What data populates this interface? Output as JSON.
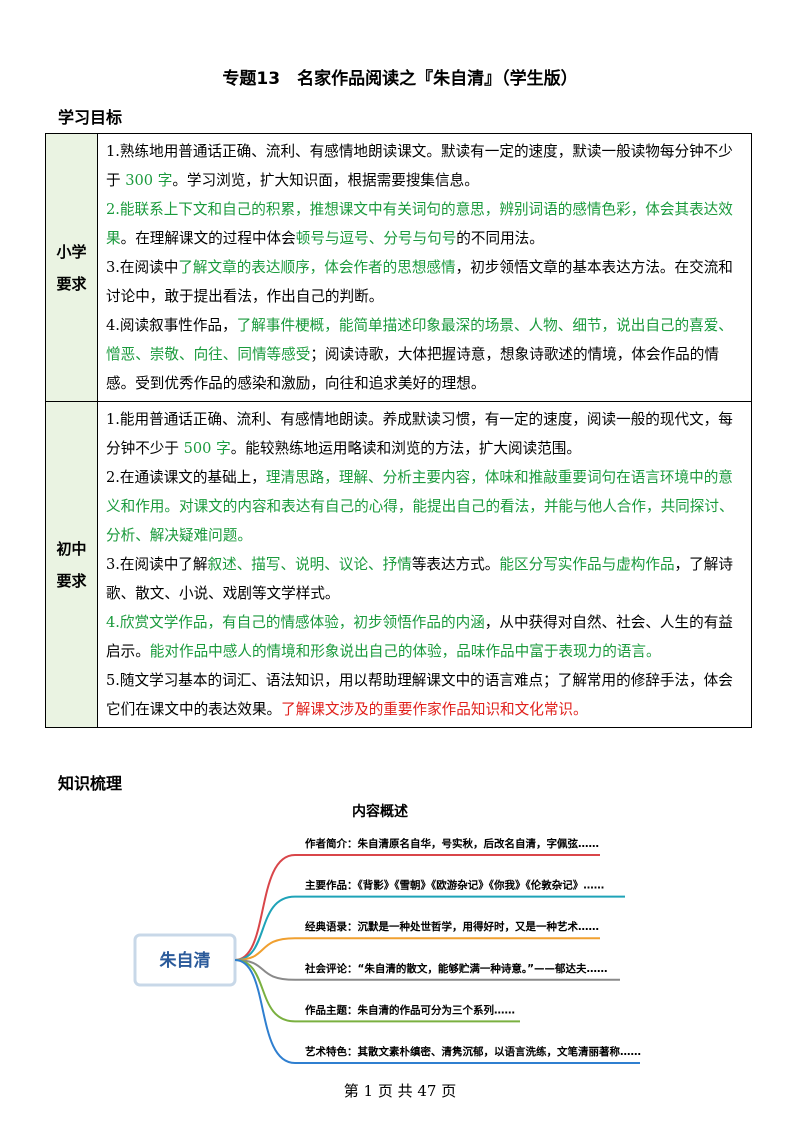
{
  "header": {
    "title": "专题13　名家作品阅读之『朱自清』（学生版）"
  },
  "objectives": {
    "heading": "学习目标",
    "rows": [
      {
        "label": [
          "小学",
          "要求"
        ],
        "paragraphs": [
          [
            {
              "text": "1.熟练地用普通话正确、流利、有感情地朗读课文。默读有一定的速度，默读一般读物每分钟不少于 "
            },
            {
              "text": "300 字",
              "color": "#1a9a3c"
            },
            {
              "text": "。学习浏览，扩大知识面，根据需要搜集信息。"
            }
          ],
          [
            {
              "text": "2.能联系上下文和自己的积累，推想课文中有关词句的意思，辨别词语的感情色彩，体会其表达效果",
              "color": "#1a9a3c"
            },
            {
              "text": "。在理解课文的过程中体会"
            },
            {
              "text": "顿号与逗号、分号与句号",
              "color": "#1a9a3c"
            },
            {
              "text": "的不同用法。"
            }
          ],
          [
            {
              "text": "3.在阅读中"
            },
            {
              "text": "了解文章的表达顺序，体会作者的思想感情",
              "color": "#1a9a3c"
            },
            {
              "text": "，初步领悟文章的基本表达方法。在交流和讨论中，敢于提出看法，作出自己的判断。"
            }
          ],
          [
            {
              "text": "4.阅读叙事性作品，"
            },
            {
              "text": "了解事件梗概，能简单描述印象最深的场景、人物、细节，说出自己的喜爱、憎恶、崇敬、向往、同情等感受",
              "color": "#1a9a3c"
            },
            {
              "text": "；阅读诗歌，大体把握诗意，想象诗歌述的情境，体会作品的情感。受到优秀作品的感染和激励，向往和追求美好的理想。"
            }
          ]
        ]
      },
      {
        "label": [
          "初中",
          "要求"
        ],
        "paragraphs": [
          [
            {
              "text": "1.能用普通话正确、流利、有感情地朗读。养成默读习惯，有一定的速度，阅读一般的现代文，每分钟不少于 "
            },
            {
              "text": "500 字",
              "color": "#1a9a3c"
            },
            {
              "text": "。能较熟练地运用略读和浏览的方法，扩大阅读范围。"
            }
          ],
          [
            {
              "text": "2.在通读课文的基础上，"
            },
            {
              "text": "理清思路，理解、分析主要内容，体味和推敲重要词句在语言环境中的意义和作用。对课文的内容和表达有自己的心得，能提出自己的看法，并能与他人合作，共同探讨、分析、解决疑难问题。",
              "color": "#1a9a3c"
            }
          ],
          [
            {
              "text": "3.在阅读中了解"
            },
            {
              "text": "叙述、描写、说明、议论、抒情",
              "color": "#1a9a3c"
            },
            {
              "text": "等表达方式。"
            },
            {
              "text": "能区分写实作品与虚构作品",
              "color": "#1a9a3c"
            },
            {
              "text": "，了解诗歌、散文、小说、戏剧等文学样式。"
            }
          ],
          [
            {
              "text": "4.欣赏文学作品，有自己的情感体验，初步领悟作品的内涵",
              "color": "#1a9a3c"
            },
            {
              "text": "，从中获得对自然、社会、人生的有益启示。"
            },
            {
              "text": "能对作品中感人的情境和形象说出自己的体验，品味作品中富于表现力的语言。",
              "color": "#1a9a3c"
            }
          ],
          [
            {
              "text": "5.随文学习基本的词汇、语法知识，用以帮助理解课文中的语言难点；了解常用的修辞手法，体会它们在课文中的表达效果。"
            },
            {
              "text": "了解课文涉及的重要作家作品知识和文化常识。",
              "color": "#e0201c"
            }
          ]
        ]
      }
    ]
  },
  "knowledge": {
    "heading": "知识梳理",
    "mindmap": {
      "title": "内容概述",
      "center": "朱自清",
      "branches": [
        {
          "label": "作者简介：",
          "text": "朱自清原名自华，号实秋，后改名自清，字佩弦……",
          "color": "#d9464a"
        },
        {
          "label": "主要作品：",
          "text": "《背影》《雪朝》《欧游杂记》《你我》《伦敦杂记》……",
          "color": "#1fa3b8"
        },
        {
          "label": "经典语录：",
          "text": "沉默是一种处世哲学，用得好时，又是一种艺术……",
          "color": "#f0a030"
        },
        {
          "label": "社会评论：",
          "text": "“朱自清的散文，能够贮满一种诗意。”——郁达夫……",
          "color": "#8a8a8a"
        },
        {
          "label": "作品主题：",
          "text": "朱自清的作品可分为三个系列……",
          "color": "#7ab040"
        },
        {
          "label": "艺术特色：",
          "text": "其散文素朴缜密、清隽沉郁，以语言洗练，文笔清丽著称……",
          "color": "#2f7fd0"
        }
      ]
    }
  },
  "footer": {
    "page": "第 1 页 共 47 页"
  }
}
